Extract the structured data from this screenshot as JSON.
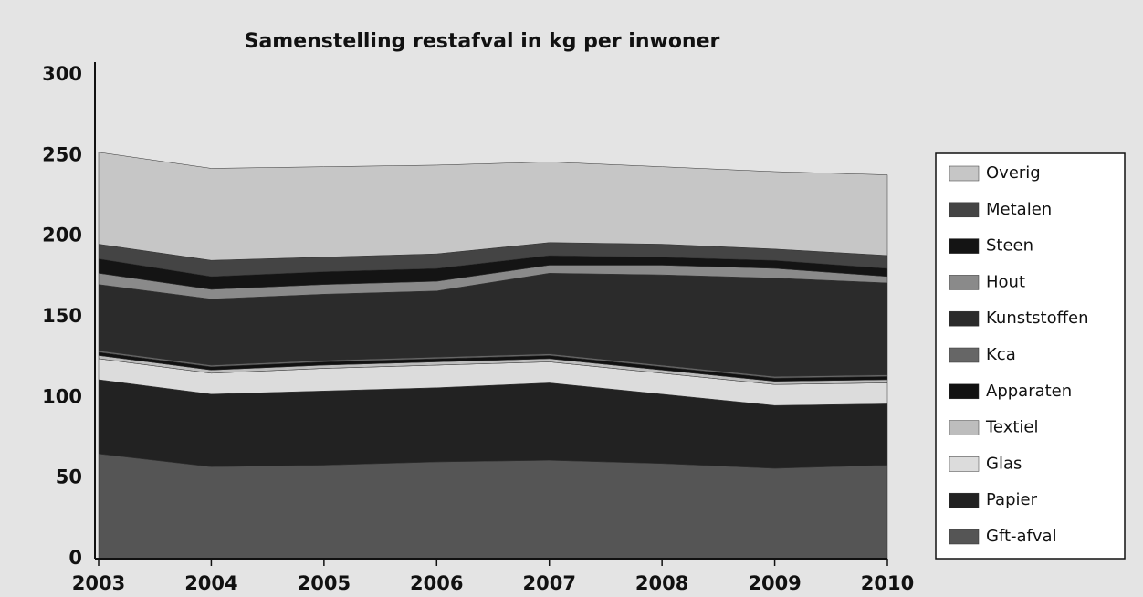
{
  "chart_data": {
    "type": "stacked_area",
    "title": "Samenstelling restafval in kg per inwoner",
    "categories": [
      "2003",
      "2004",
      "2005",
      "2006",
      "2007",
      "2008",
      "2009",
      "2010"
    ],
    "series": [
      {
        "name": "Gft-afval",
        "color": "#555555",
        "values": [
          65,
          57,
          58,
          60,
          61,
          59,
          56,
          58
        ]
      },
      {
        "name": "Papier",
        "color": "#222222",
        "values": [
          46,
          45,
          46,
          46,
          48,
          43,
          39,
          38
        ]
      },
      {
        "name": "Glas",
        "color": "#dcdcdc",
        "values": [
          13,
          13,
          14,
          14,
          13,
          13,
          13,
          13
        ]
      },
      {
        "name": "Textiel",
        "color": "#bdbdbd",
        "values": [
          2,
          2,
          2,
          2,
          2,
          2,
          2,
          2
        ]
      },
      {
        "name": "Apparaten",
        "color": "#111111",
        "values": [
          2,
          2,
          2,
          2,
          2,
          2,
          2,
          2
        ]
      },
      {
        "name": "Kca",
        "color": "#666666",
        "values": [
          1,
          1,
          1,
          1,
          1,
          1,
          1,
          1
        ]
      },
      {
        "name": "Kunststoffen",
        "color": "#2b2b2b",
        "values": [
          41,
          41,
          41,
          41,
          50,
          56,
          61,
          57
        ]
      },
      {
        "name": "Hout",
        "color": "#8a8a8a",
        "values": [
          7,
          6,
          6,
          6,
          5,
          6,
          6,
          4
        ]
      },
      {
        "name": "Steen",
        "color": "#141414",
        "values": [
          9,
          8,
          8,
          8,
          6,
          5,
          5,
          5
        ]
      },
      {
        "name": "Metalen",
        "color": "#444444",
        "values": [
          9,
          10,
          9,
          9,
          8,
          8,
          7,
          8
        ]
      },
      {
        "name": "Overig",
        "color": "#c6c6c6",
        "values": [
          57,
          57,
          56,
          55,
          50,
          48,
          48,
          50
        ]
      }
    ],
    "ylim": [
      0,
      300
    ],
    "yticks": [
      0,
      50,
      100,
      150,
      200,
      250,
      300
    ],
    "grid": false,
    "legend": "right"
  }
}
